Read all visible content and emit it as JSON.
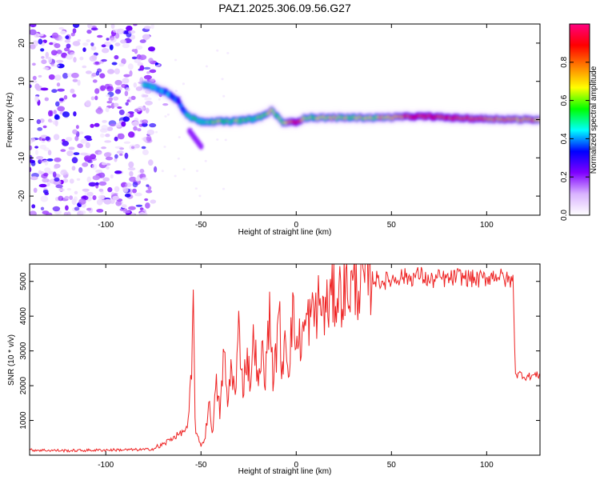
{
  "title": "PAZ1.2025.306.09.56.G27",
  "chart_data": [
    {
      "type": "heatmap",
      "name": "spectrogram",
      "xlabel": "Height of straight line (km)",
      "ylabel": "Frequency (Hz)",
      "xlim": [
        -140,
        128
      ],
      "ylim": [
        -25,
        25
      ],
      "xticks": [
        -100,
        -50,
        0,
        50,
        100
      ],
      "xtick_labels": [
        "-100",
        "-50",
        "0",
        "50",
        "100"
      ],
      "yticks": [
        -20,
        -10,
        0,
        10,
        20
      ],
      "ytick_labels": [
        "-20",
        "-10",
        "0",
        "10",
        "20"
      ],
      "colorbar": {
        "label": "Normalized spectral amplitude",
        "range": [
          0,
          1
        ],
        "ticks": [
          0.0,
          0.2,
          0.4,
          0.6,
          0.8
        ],
        "tick_labels": [
          "0.0",
          "0.2",
          "0.4",
          "0.6",
          "0.8"
        ],
        "colormap": [
          "#ffffff",
          "#d9b3ff",
          "#7f00ff",
          "#0000ff",
          "#00ffff",
          "#00ff00",
          "#ffff00",
          "#ff8000",
          "#ff0000",
          "#ff0080"
        ]
      },
      "noise_region_x": [
        -140,
        -75
      ],
      "signal_track": {
        "x": [
          -80,
          -75,
          -70,
          -66,
          -62,
          -60,
          -58,
          -55,
          -52,
          -50,
          -45,
          -40,
          -35,
          -30,
          -25,
          -20,
          -15,
          -13,
          -10,
          -8,
          -5,
          0,
          5,
          10,
          20,
          30,
          40,
          50,
          60,
          70,
          80,
          90,
          100,
          110,
          120,
          128
        ],
        "freq": [
          9,
          8.5,
          7.5,
          6.5,
          5,
          3,
          1.5,
          0.5,
          0,
          -0.5,
          -0.5,
          -0.5,
          -0.5,
          -0.3,
          0,
          0.5,
          1.5,
          2.5,
          1,
          -0.5,
          -0.8,
          -0.6,
          0.5,
          0.5,
          0.5,
          0.5,
          0.5,
          0.6,
          0.8,
          0.8,
          0.5,
          0.3,
          0.2,
          0.1,
          0.0,
          0.0
        ],
        "amplitude": [
          0.5,
          0.45,
          0.4,
          0.4,
          0.35,
          0.4,
          0.45,
          0.5,
          0.55,
          0.5,
          0.55,
          0.6,
          0.55,
          0.6,
          0.55,
          0.55,
          0.6,
          0.7,
          0.55,
          0.6,
          0.65,
          0.95,
          0.6,
          0.6,
          0.65,
          0.65,
          0.65,
          0.7,
          0.85,
          0.9,
          0.85,
          0.85,
          0.8,
          0.75,
          0.75,
          0.75
        ]
      },
      "signal_tail": {
        "x": [
          -56,
          -53,
          -50
        ],
        "freq": [
          -3,
          -5,
          -7
        ]
      }
    },
    {
      "type": "line",
      "name": "snr",
      "xlabel": "Height of straight line (km)",
      "ylabel": "SNR (10 * v/v)",
      "xlim": [
        -140,
        128
      ],
      "ylim": [
        0,
        5500
      ],
      "xticks": [
        -100,
        -50,
        0,
        50,
        100
      ],
      "xtick_labels": [
        "-100",
        "-50",
        "0",
        "50",
        "100"
      ],
      "yticks": [
        1000,
        2000,
        3000,
        4000,
        5000
      ],
      "ytick_labels": [
        "1000",
        "2000",
        "3000",
        "4000",
        "5000"
      ],
      "color": "#ee2222",
      "series": [
        {
          "name": "SNR",
          "x": [
            -140,
            -120,
            -100,
            -80,
            -75,
            -70,
            -65,
            -60,
            -57,
            -55,
            -54,
            -53,
            -52,
            -50,
            -48,
            -46,
            -44,
            -42,
            -40,
            -38,
            -36,
            -34,
            -32,
            -30,
            -28,
            -26,
            -24,
            -22,
            -20,
            -18,
            -16,
            -14,
            -12,
            -10,
            -9,
            -8,
            -6,
            -4,
            -2,
            0,
            3,
            6,
            9,
            12,
            15,
            18,
            21,
            24,
            27,
            30,
            35,
            40,
            45,
            50,
            55,
            60,
            65,
            70,
            75,
            80,
            85,
            90,
            95,
            100,
            105,
            110,
            114,
            115,
            116,
            118,
            120,
            125,
            128
          ],
          "y": [
            150,
            130,
            150,
            160,
            180,
            300,
            500,
            650,
            800,
            2200,
            4300,
            800,
            500,
            300,
            450,
            1500,
            700,
            2000,
            1200,
            3000,
            1400,
            2700,
            1600,
            3800,
            1900,
            2900,
            2100,
            3600,
            1800,
            3000,
            2300,
            4200,
            2100,
            3200,
            5200,
            1700,
            3700,
            2500,
            4100,
            3200,
            3400,
            3900,
            4000,
            4400,
            4100,
            4500,
            4600,
            4700,
            4800,
            4850,
            5000,
            5100,
            5000,
            5050,
            5150,
            5100,
            5200,
            5000,
            5100,
            5050,
            5150,
            5100,
            5050,
            5100,
            5200,
            5050,
            5000,
            2400,
            2300,
            2350,
            2250,
            2300,
            2300
          ]
        }
      ]
    }
  ]
}
